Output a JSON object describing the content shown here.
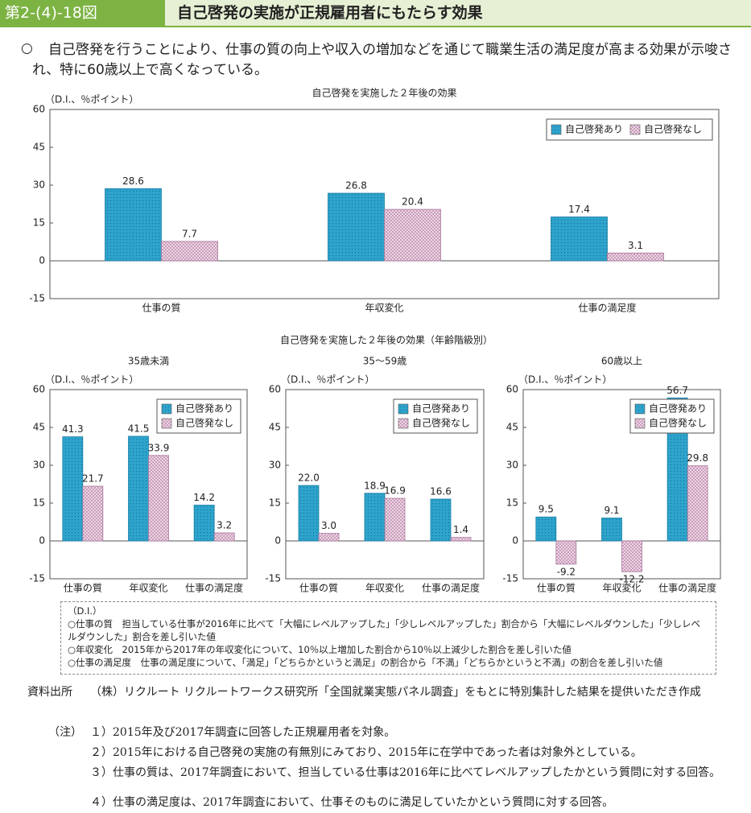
{
  "header": {
    "figure_number": "第2-(4)-18図",
    "title": "自己啓発の実施が正規雇用者にもたらす効果"
  },
  "summary": {
    "bullet": "○",
    "text": "自己啓発を行うことにより、仕事の質の向上や収入の増加などを通じて職業生活の満足度が高まる効果が示唆され、特に60歳以上で高くなっている。"
  },
  "section_title": "自己啓発を実施した２年後の効果（年齢階級別）",
  "chart_data": [
    {
      "type": "bar",
      "title": "自己啓発を実施した２年後の効果",
      "y_axis_label": "（D.I.、％ポイント）",
      "categories": [
        "仕事の質",
        "年収変化",
        "仕事の満足度"
      ],
      "series": [
        {
          "name": "自己啓発あり",
          "color": "#2ea3cc",
          "values": [
            28.6,
            26.8,
            17.4
          ]
        },
        {
          "name": "自己啓発なし",
          "color": "#f3dcea",
          "values": [
            7.7,
            20.4,
            3.1
          ]
        }
      ],
      "ylim": [
        -15,
        60
      ],
      "yticks": [
        -15,
        0,
        15,
        30,
        45,
        60
      ],
      "legend": "upper right"
    },
    {
      "type": "bar",
      "title": "35歳未満",
      "y_axis_label": "（D.I.、％ポイント）",
      "categories": [
        "仕事の質",
        "年収変化",
        "仕事の満足度"
      ],
      "series": [
        {
          "name": "自己啓発あり",
          "color": "#2ea3cc",
          "values": [
            41.3,
            41.5,
            14.2
          ]
        },
        {
          "name": "自己啓発なし",
          "color": "#f3dcea",
          "values": [
            21.7,
            33.9,
            3.2
          ]
        }
      ],
      "ylim": [
        -15,
        60
      ],
      "yticks": [
        -15,
        0,
        15,
        30,
        45,
        60
      ],
      "legend": "upper right"
    },
    {
      "type": "bar",
      "title": "35～59歳",
      "y_axis_label": "（D.I.、％ポイント）",
      "categories": [
        "仕事の質",
        "年収変化",
        "仕事の満足度"
      ],
      "series": [
        {
          "name": "自己啓発あり",
          "color": "#2ea3cc",
          "values": [
            22.0,
            18.9,
            16.6
          ],
          "value_labels": [
            "22.0",
            "18.9",
            "16.6"
          ]
        },
        {
          "name": "自己啓発なし",
          "color": "#f3dcea",
          "values": [
            3.0,
            16.9,
            1.4
          ],
          "value_labels": [
            "3.0",
            "16.9",
            "1.4"
          ]
        }
      ],
      "ylim": [
        -15,
        60
      ],
      "yticks": [
        -15,
        0,
        15,
        30,
        45,
        60
      ],
      "legend": "upper right"
    },
    {
      "type": "bar",
      "title": "60歳以上",
      "y_axis_label": "（D.I.、％ポイント）",
      "categories": [
        "仕事の質",
        "年収変化",
        "仕事の満足度"
      ],
      "series": [
        {
          "name": "自己啓発あり",
          "color": "#2ea3cc",
          "values": [
            9.5,
            9.1,
            56.7
          ]
        },
        {
          "name": "自己啓発なし",
          "color": "#f3dcea",
          "values": [
            -9.2,
            -12.2,
            29.8
          ]
        }
      ],
      "ylim": [
        -15,
        60
      ],
      "yticks": [
        -15,
        0,
        15,
        30,
        45,
        60
      ],
      "legend": "upper right"
    }
  ],
  "definitions": {
    "heading": "（D.I.）",
    "items": [
      "○仕事の質　担当している仕事が2016年に比べて「大幅にレベルアップした」「少しレベルアップした」割合から「大幅にレベルダウンした」「少しレベルダウンした」割合を差し引いた値",
      "○年収変化　2015年から2017年の年収変化について、10％以上増加した割合から10％以上減少した割合を差し引いた値",
      "○仕事の満足度　仕事の満足度について、「満足」「どちらかというと満足」の割合から「不満」「どちらかというと不満」の割合を差し引いた値"
    ]
  },
  "source": {
    "label": "資料出所",
    "text": "（株）リクルート リクルートワークス研究所「全国就業実態パネル調査」をもとに特別集計した結果を提供いただき作成"
  },
  "notes": {
    "label": "（注）",
    "items": [
      "１）2015年及び2017年調査に回答した正規雇用者を対象。",
      "２）2015年における自己啓発の実施の有無別にみており、2015年に在学中であった者は対象外としている。",
      "３）仕事の質は、2017年調査において、担当している仕事は2016年に比べてレベルアップしたかという質問に対する回答。",
      "４）仕事の満足度は、2017年調査において、仕事そのものに満足していたかという質問に対する回答。"
    ]
  }
}
